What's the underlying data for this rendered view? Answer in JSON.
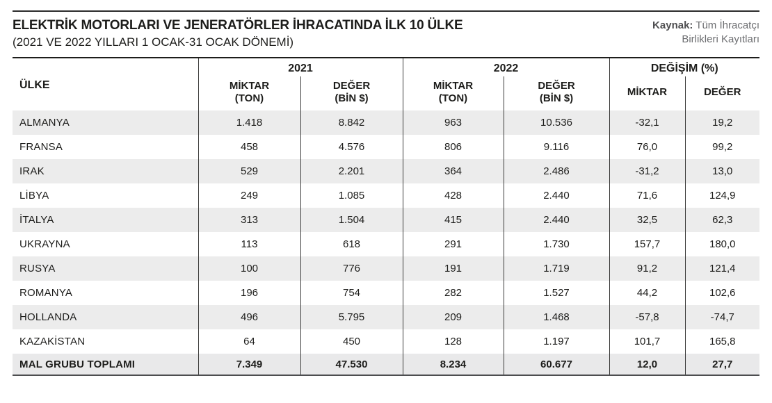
{
  "colors": {
    "text": "#1d1d1b",
    "stripe": "#ececec",
    "grid_line": "#3a3a39",
    "top_border": "#1d1d1b",
    "bottom_border": "#4d4e50",
    "source_gray": "#6d6e71"
  },
  "header": {
    "title": "ELEKTRİK MOTORLARI VE JENERATÖRLER İHRACATINDA İLK 10 ÜLKE",
    "subtitle": "(2021 VE 2022 YILLARI 1 OCAK-31 OCAK DÖNEMİ)",
    "source_label": "Kaynak:",
    "source_line1": " Tüm İhracatçı",
    "source_line2": "Birlikleri Kayıtları"
  },
  "table": {
    "country_header": "ÜLKE",
    "groups": [
      {
        "label": "2021"
      },
      {
        "label": "2022"
      },
      {
        "label": "DEĞİŞİM (%)"
      }
    ],
    "subheaders": [
      {
        "line1": "MİKTAR",
        "line2": "(TON)"
      },
      {
        "line1": "DEĞER",
        "line2": "(BİN $)"
      },
      {
        "line1": "MİKTAR",
        "line2": "(TON)"
      },
      {
        "line1": "DEĞER",
        "line2": "(BİN $)"
      },
      {
        "line1": "MİKTAR",
        "line2": ""
      },
      {
        "line1": "DEĞER",
        "line2": ""
      }
    ],
    "rows": [
      {
        "country": "ALMANYA",
        "values": [
          "1.418",
          "8.842",
          "963",
          "10.536",
          "-32,1",
          "19,2"
        ]
      },
      {
        "country": "FRANSA",
        "values": [
          "458",
          "4.576",
          "806",
          "9.116",
          "76,0",
          "99,2"
        ]
      },
      {
        "country": "IRAK",
        "values": [
          "529",
          "2.201",
          "364",
          "2.486",
          "-31,2",
          "13,0"
        ]
      },
      {
        "country": "LİBYA",
        "values": [
          "249",
          "1.085",
          "428",
          "2.440",
          "71,6",
          "124,9"
        ]
      },
      {
        "country": "İTALYA",
        "values": [
          "313",
          "1.504",
          "415",
          "2.440",
          "32,5",
          "62,3"
        ]
      },
      {
        "country": "UKRAYNA",
        "values": [
          "113",
          "618",
          "291",
          "1.730",
          "157,7",
          "180,0"
        ]
      },
      {
        "country": "RUSYA",
        "values": [
          "100",
          "776",
          "191",
          "1.719",
          "91,2",
          "121,4"
        ]
      },
      {
        "country": "ROMANYA",
        "values": [
          "196",
          "754",
          "282",
          "1.527",
          "44,2",
          "102,6"
        ]
      },
      {
        "country": "HOLLANDA",
        "values": [
          "496",
          "5.795",
          "209",
          "1.468",
          "-57,8",
          "-74,7"
        ]
      },
      {
        "country": "KAZAKİSTAN",
        "values": [
          "64",
          "450",
          "128",
          "1.197",
          "101,7",
          "165,8"
        ]
      }
    ],
    "total": {
      "label": "MAL GRUBU TOPLAMI",
      "values": [
        "7.349",
        "47.530",
        "8.234",
        "60.677",
        "12,0",
        "27,7"
      ]
    }
  },
  "chart_data": {
    "type": "table",
    "title": "ELEKTRİK MOTORLARI VE JENERATÖRLER İHRACATINDA İLK 10 ÜLKE",
    "subtitle": "(2021 VE 2022 YILLARI 1 OCAK-31 OCAK DÖNEMİ)",
    "source": "Kaynak: Tüm İhracatçı Birlikleri Kayıtları",
    "column_groups": [
      "2021",
      "2022",
      "DEĞİŞİM (%)"
    ],
    "columns": [
      "ÜLKE",
      "2021 MİKTAR (TON)",
      "2021 DEĞER (BİN $)",
      "2022 MİKTAR (TON)",
      "2022 DEĞER (BİN $)",
      "DEĞİŞİM MİKTAR (%)",
      "DEĞİŞİM DEĞER (%)"
    ],
    "rows": [
      [
        "ALMANYA",
        1418,
        8842,
        963,
        10536,
        -32.1,
        19.2
      ],
      [
        "FRANSA",
        458,
        4576,
        806,
        9116,
        76.0,
        99.2
      ],
      [
        "IRAK",
        529,
        2201,
        364,
        2486,
        -31.2,
        13.0
      ],
      [
        "LİBYA",
        249,
        1085,
        428,
        2440,
        71.6,
        124.9
      ],
      [
        "İTALYA",
        313,
        1504,
        415,
        2440,
        32.5,
        62.3
      ],
      [
        "UKRAYNA",
        113,
        618,
        291,
        1730,
        157.7,
        180.0
      ],
      [
        "RUSYA",
        100,
        776,
        191,
        1719,
        91.2,
        121.4
      ],
      [
        "ROMANYA",
        196,
        754,
        282,
        1527,
        44.2,
        102.6
      ],
      [
        "HOLLANDA",
        496,
        5795,
        209,
        1468,
        -57.8,
        -74.7
      ],
      [
        "KAZAKİSTAN",
        64,
        450,
        128,
        1197,
        101.7,
        165.8
      ]
    ],
    "total_row": [
      "MAL GRUBU TOPLAMI",
      7349,
      47530,
      8234,
      60677,
      12.0,
      27.7
    ]
  }
}
